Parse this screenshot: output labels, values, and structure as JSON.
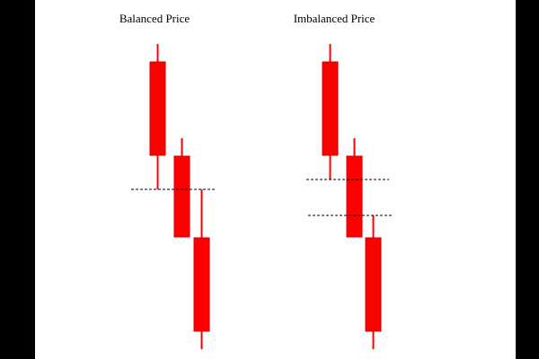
{
  "colors": {
    "candle": "#ff0000",
    "level_line": "#000000",
    "background": "#ffffff",
    "border": "#000000"
  },
  "panels": [
    {
      "title": "Balanced Price",
      "candles": [
        {
          "direction": "bearish"
        },
        {
          "direction": "bearish"
        },
        {
          "direction": "bearish"
        }
      ],
      "level_lines": [
        {
          "style": "dashed"
        }
      ]
    },
    {
      "title": "Imbalanced Price",
      "candles": [
        {
          "direction": "bearish"
        },
        {
          "direction": "bearish"
        },
        {
          "direction": "bearish"
        }
      ],
      "level_lines": [
        {
          "style": "dashed"
        },
        {
          "style": "dashed"
        }
      ]
    }
  ]
}
